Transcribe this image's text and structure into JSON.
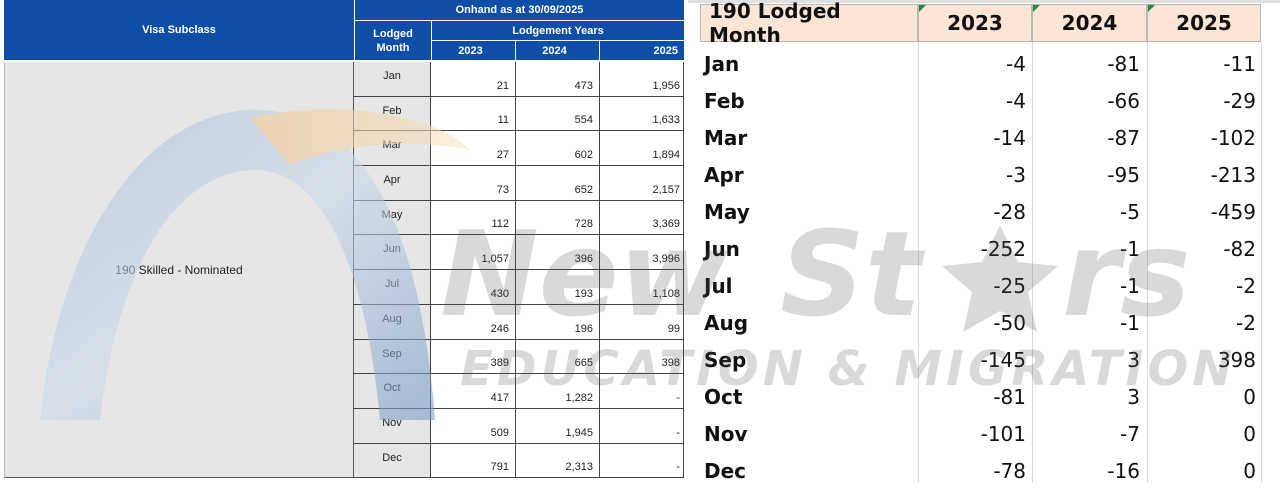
{
  "left_table": {
    "header": {
      "visa_subclass": "Visa Subclass",
      "onhand": "Onhand as at 30/09/2025",
      "lodged_line1": "Lodged",
      "lodged_line2": "Month",
      "lodgement_years": "Lodgement Years",
      "years": [
        "2023",
        "2024",
        "2025"
      ]
    },
    "visa_label": "190 Skilled - Nominated",
    "rows": [
      {
        "month": "Jan",
        "y2023": "21",
        "y2024": "473",
        "y2025": "1,956"
      },
      {
        "month": "Feb",
        "y2023": "11",
        "y2024": "554",
        "y2025": "1,633"
      },
      {
        "month": "Mar",
        "y2023": "27",
        "y2024": "602",
        "y2025": "1,894"
      },
      {
        "month": "Apr",
        "y2023": "73",
        "y2024": "652",
        "y2025": "2,157"
      },
      {
        "month": "May",
        "y2023": "112",
        "y2024": "728",
        "y2025": "3,369"
      },
      {
        "month": "Jun",
        "y2023": "1,057",
        "y2024": "396",
        "y2025": "3,996"
      },
      {
        "month": "Jul",
        "y2023": "430",
        "y2024": "193",
        "y2025": "1,108"
      },
      {
        "month": "Aug",
        "y2023": "246",
        "y2024": "196",
        "y2025": "99"
      },
      {
        "month": "Sep",
        "y2023": "389",
        "y2024": "665",
        "y2025": "398"
      },
      {
        "month": "Oct",
        "y2023": "417",
        "y2024": "1,282",
        "y2025": "-"
      },
      {
        "month": "Nov",
        "y2023": "509",
        "y2024": "1,945",
        "y2025": "-"
      },
      {
        "month": "Dec",
        "y2023": "791",
        "y2024": "2,313",
        "y2025": "-"
      }
    ]
  },
  "right_table": {
    "header": {
      "month_col": "190 Lodged Month",
      "years": [
        "2023",
        "2024",
        "2025"
      ]
    },
    "rows": [
      {
        "month": "Jan",
        "y2023": "-4",
        "y2024": "-81",
        "y2025": "-11"
      },
      {
        "month": "Feb",
        "y2023": "-4",
        "y2024": "-66",
        "y2025": "-29"
      },
      {
        "month": "Mar",
        "y2023": "-14",
        "y2024": "-87",
        "y2025": "-102"
      },
      {
        "month": "Apr",
        "y2023": "-3",
        "y2024": "-95",
        "y2025": "-213"
      },
      {
        "month": "May",
        "y2023": "-28",
        "y2024": "-5",
        "y2025": "-459"
      },
      {
        "month": "Jun",
        "y2023": "-252",
        "y2024": "-1",
        "y2025": "-82"
      },
      {
        "month": "Jul",
        "y2023": "-25",
        "y2024": "-1",
        "y2025": "-2"
      },
      {
        "month": "Aug",
        "y2023": "-50",
        "y2024": "-1",
        "y2025": "-2"
      },
      {
        "month": "Sep",
        "y2023": "-145",
        "y2024": "3",
        "y2025": "398"
      },
      {
        "month": "Oct",
        "y2023": "-81",
        "y2024": "3",
        "y2025": "0"
      },
      {
        "month": "Nov",
        "y2023": "-101",
        "y2024": "-7",
        "y2025": "0"
      },
      {
        "month": "Dec",
        "y2023": "-78",
        "y2024": "-16",
        "y2025": "0"
      }
    ]
  },
  "watermark": {
    "brand_pre": "New",
    "brand_post": "St",
    "brand_end": "rs",
    "tagline": "EDUCATION & MIGRATION"
  },
  "colors": {
    "header_blue": "#0f4ea6",
    "header_peach": "#fbe5d6",
    "cell_grey": "#e6e6e6",
    "cell_marker_green": "#1e8c3a"
  }
}
